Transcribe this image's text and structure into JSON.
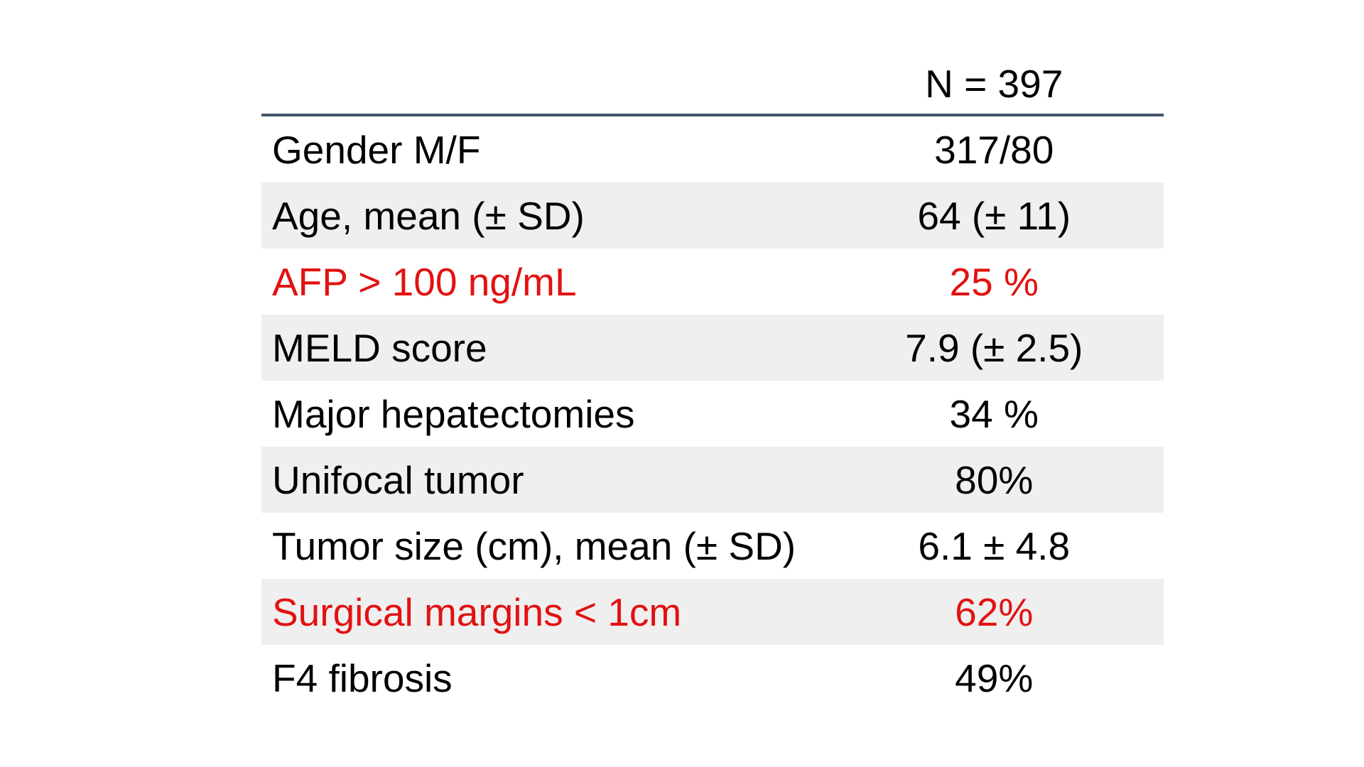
{
  "table": {
    "header": {
      "label": "",
      "value": "N = 397"
    },
    "rows": [
      {
        "label": "Gender M/F",
        "value": "317/80",
        "shaded": false,
        "highlight": false
      },
      {
        "label": "Age, mean (± SD)",
        "value": "64 (± 11)",
        "shaded": true,
        "highlight": false
      },
      {
        "label": "AFP > 100 ng/mL",
        "value": "25 %",
        "shaded": false,
        "highlight": true
      },
      {
        "label": "MELD score",
        "value": "7.9 (± 2.5)",
        "shaded": true,
        "highlight": false
      },
      {
        "label": "Major hepatectomies",
        "value": "34 %",
        "shaded": false,
        "highlight": false
      },
      {
        "label": "Unifocal tumor",
        "value": "80%",
        "shaded": true,
        "highlight": false
      },
      {
        "label": "Tumor size (cm), mean (± SD)",
        "value": "6.1 ± 4.8",
        "shaded": false,
        "highlight": false
      },
      {
        "label": "Surgical margins < 1cm",
        "value": "62%",
        "shaded": true,
        "highlight": true
      },
      {
        "label": "F4 fibrosis",
        "value": "49%",
        "shaded": false,
        "highlight": false
      }
    ]
  },
  "colors": {
    "highlight_text": "#E21111",
    "shaded_row": "#EFEFEF",
    "header_rule": "#44546A",
    "body_text": "#000000",
    "background": "#FFFFFF"
  }
}
